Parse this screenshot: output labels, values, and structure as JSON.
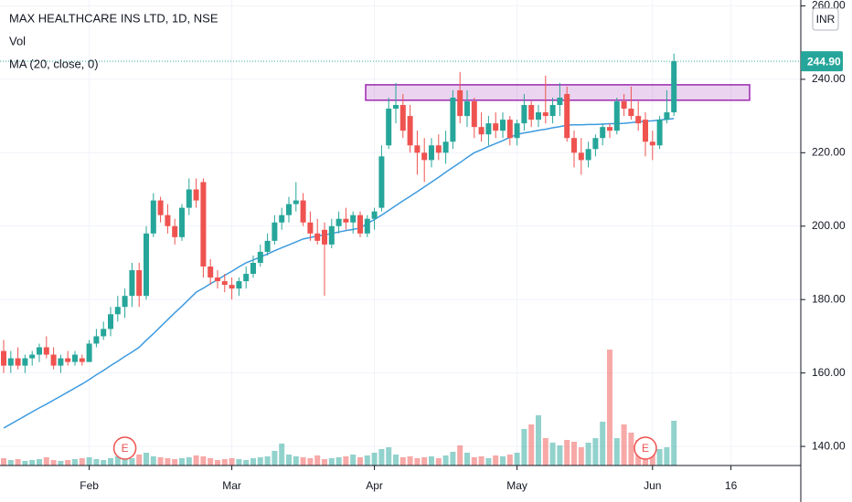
{
  "chart_data": {
    "type": "candlestick",
    "title": "MAX HEALTHCARE INS LTD, 1D, NSE",
    "volume_label": "Vol",
    "ma_label": "MA (20, close, 0)",
    "currency": "INR",
    "up_color": "#26a69a",
    "down_color": "#ef5350",
    "ma_color": "#3d9be0",
    "zone_color": "#9c27b0",
    "ylim": [
      134.8,
      261.6
    ],
    "yticks": [
      {
        "value": 140,
        "label": "140.00"
      },
      {
        "value": 160,
        "label": "160.00"
      },
      {
        "value": 180,
        "label": "180.00"
      },
      {
        "value": 200,
        "label": "200.00"
      },
      {
        "value": 220,
        "label": "220.00"
      },
      {
        "value": 240,
        "label": "240.00"
      },
      {
        "value": 260,
        "label": "260.00"
      }
    ],
    "grid": true,
    "last_price": {
      "value": 244.9,
      "label": "244.90"
    },
    "zone": {
      "top": 238.5,
      "bottom": 234.3
    },
    "events": [
      {
        "label": "E",
        "index": 17
      },
      {
        "label": "E",
        "index": 90
      }
    ],
    "categories": [
      null,
      null,
      null,
      null,
      null,
      null,
      null,
      null,
      null,
      null,
      null,
      null,
      "Feb",
      null,
      null,
      null,
      null,
      null,
      null,
      null,
      null,
      null,
      null,
      null,
      null,
      null,
      null,
      null,
      null,
      null,
      null,
      null,
      "Mar",
      null,
      null,
      null,
      null,
      null,
      null,
      null,
      null,
      null,
      null,
      null,
      null,
      null,
      null,
      null,
      null,
      null,
      null,
      null,
      "Apr",
      null,
      null,
      null,
      null,
      null,
      null,
      null,
      null,
      null,
      null,
      null,
      null,
      null,
      null,
      null,
      null,
      null,
      null,
      null,
      "May",
      null,
      null,
      null,
      null,
      null,
      null,
      null,
      null,
      null,
      null,
      null,
      null,
      null,
      null,
      null,
      null,
      null,
      null,
      "Jun",
      null,
      null,
      null,
      null,
      null,
      null,
      null,
      null,
      null,
      null,
      "16"
    ],
    "ohlc": [
      [
        166,
        169,
        160,
        162
      ],
      [
        162,
        166,
        160,
        164
      ],
      [
        164,
        167,
        161,
        162
      ],
      [
        162,
        165,
        160,
        164
      ],
      [
        164,
        166,
        162,
        165
      ],
      [
        165,
        168,
        163,
        167
      ],
      [
        167,
        170,
        164,
        165
      ],
      [
        165,
        167,
        161,
        162
      ],
      [
        162,
        165,
        160,
        164
      ],
      [
        164,
        166,
        162,
        163
      ],
      [
        163,
        166,
        162,
        165
      ],
      [
        164,
        165,
        162,
        163
      ],
      [
        163,
        169,
        163,
        168
      ],
      [
        168,
        172,
        167,
        170
      ],
      [
        170,
        174,
        169,
        172
      ],
      [
        172,
        178,
        170,
        176
      ],
      [
        176,
        181,
        174,
        178
      ],
      [
        178,
        183,
        175,
        181
      ],
      [
        181,
        190,
        178,
        188
      ],
      [
        188,
        190,
        178,
        181
      ],
      [
        181,
        200,
        180,
        198
      ],
      [
        198,
        209,
        197,
        207
      ],
      [
        207,
        208,
        201,
        203
      ],
      [
        203,
        206,
        198,
        200
      ],
      [
        200,
        202,
        195,
        197
      ],
      [
        197,
        206,
        196,
        205
      ],
      [
        205,
        213,
        203,
        210
      ],
      [
        210,
        213,
        205,
        207
      ],
      [
        212,
        213,
        186,
        189
      ],
      [
        189,
        191,
        184,
        186
      ],
      [
        186,
        188,
        183,
        185
      ],
      [
        185,
        187,
        182,
        184
      ],
      [
        184,
        186,
        180,
        183
      ],
      [
        183,
        186,
        181,
        185
      ],
      [
        185,
        189,
        183,
        187
      ],
      [
        187,
        192,
        186,
        190
      ],
      [
        190,
        195,
        189,
        193
      ],
      [
        193,
        198,
        192,
        196
      ],
      [
        196,
        203,
        195,
        201
      ],
      [
        201,
        205,
        199,
        203
      ],
      [
        203,
        208,
        201,
        206
      ],
      [
        206,
        212,
        204,
        207
      ],
      [
        207,
        209,
        200,
        201
      ],
      [
        201,
        204,
        196,
        198
      ],
      [
        198,
        202,
        195,
        196
      ],
      [
        199,
        201,
        181,
        195
      ],
      [
        195,
        202,
        194,
        200
      ],
      [
        200,
        204,
        198,
        202
      ],
      [
        202,
        205,
        199,
        201
      ],
      [
        201,
        204,
        198,
        203
      ],
      [
        203,
        204,
        197,
        198
      ],
      [
        198,
        203,
        197,
        202
      ],
      [
        202,
        205,
        199,
        204
      ],
      [
        205,
        222,
        204,
        219
      ],
      [
        222,
        235,
        221,
        232
      ],
      [
        232,
        239,
        228,
        233
      ],
      [
        233,
        236,
        224,
        226
      ],
      [
        230,
        233,
        220,
        222
      ],
      [
        222,
        226,
        214,
        220
      ],
      [
        220,
        224,
        212,
        218
      ],
      [
        218,
        224,
        216,
        222
      ],
      [
        222,
        225,
        218,
        220
      ],
      [
        220,
        226,
        217,
        223
      ],
      [
        223,
        237,
        221,
        235
      ],
      [
        237,
        242,
        228,
        230
      ],
      [
        230,
        237,
        227,
        234
      ],
      [
        234,
        235,
        224,
        227
      ],
      [
        227,
        231,
        223,
        225
      ],
      [
        225,
        230,
        222,
        228
      ],
      [
        228,
        231,
        224,
        226
      ],
      [
        226,
        231,
        224,
        229
      ],
      [
        229,
        230,
        222,
        224
      ],
      [
        224,
        229,
        222,
        228
      ],
      [
        228,
        236,
        226,
        233
      ],
      [
        233,
        234,
        227,
        229
      ],
      [
        229,
        233,
        227,
        231
      ],
      [
        231,
        241,
        228,
        230
      ],
      [
        230,
        235,
        228,
        233
      ],
      [
        233,
        239,
        230,
        235
      ],
      [
        236,
        238,
        223,
        224
      ],
      [
        224,
        226,
        216,
        220
      ],
      [
        220,
        224,
        214,
        218
      ],
      [
        218,
        223,
        216,
        221
      ],
      [
        221,
        225,
        219,
        224
      ],
      [
        224,
        228,
        222,
        227
      ],
      [
        227,
        228,
        224,
        226
      ],
      [
        226,
        235,
        225,
        234
      ],
      [
        234,
        236,
        230,
        232
      ],
      [
        232,
        238,
        229,
        230
      ],
      [
        230,
        234,
        226,
        228
      ],
      [
        229,
        231,
        219,
        223
      ],
      [
        223,
        226,
        218,
        222
      ],
      [
        222,
        230,
        221,
        229
      ],
      [
        229,
        237,
        228,
        231
      ],
      [
        231,
        247,
        230,
        244.9
      ],
      null,
      null,
      null,
      null,
      null,
      null,
      null,
      null
    ],
    "volume": [
      8,
      6,
      7,
      5,
      6,
      7,
      9,
      6,
      5,
      6,
      7,
      8,
      9,
      7,
      6,
      8,
      10,
      9,
      8,
      12,
      14,
      10,
      9,
      8,
      7,
      8,
      9,
      11,
      10,
      8,
      6,
      7,
      8,
      7,
      6,
      8,
      9,
      10,
      16,
      24,
      12,
      10,
      9,
      8,
      11,
      7,
      8,
      9,
      10,
      12,
      9,
      11,
      14,
      18,
      20,
      12,
      9,
      10,
      8,
      9,
      10,
      8,
      11,
      15,
      22,
      14,
      9,
      10,
      8,
      11,
      10,
      12,
      14,
      40,
      45,
      55,
      30,
      25,
      22,
      28,
      26,
      20,
      25,
      30,
      48,
      127,
      30,
      45,
      36,
      28,
      30,
      22,
      18,
      20,
      49,
      null,
      null,
      null,
      null,
      null,
      null,
      null,
      null
    ],
    "ma": [
      145,
      146.1,
      147.2,
      148.3,
      149.4,
      150.5,
      151.5,
      152.6,
      153.7,
      154.8,
      155.9,
      157,
      158.2,
      159.5,
      160.7,
      162,
      163.2,
      164.5,
      165.7,
      167,
      168.9,
      170.7,
      172.6,
      174.5,
      176.4,
      178.2,
      180.1,
      182,
      183.1,
      184.3,
      185.4,
      186.6,
      187.7,
      188.9,
      190,
      190.8,
      191.6,
      192.4,
      193.3,
      194.1,
      194.9,
      195.7,
      196.5,
      196.9,
      197.3,
      197.6,
      198,
      198.4,
      198.8,
      199.1,
      199.5,
      200.7,
      201.8,
      203,
      204.3,
      205.6,
      206.9,
      208.1,
      209.4,
      210.7,
      212,
      213.3,
      214.7,
      216,
      217.3,
      218.7,
      220,
      220.8,
      221.7,
      222.5,
      223.3,
      224.2,
      225,
      225.4,
      225.7,
      226.1,
      226.4,
      226.8,
      227.1,
      227.5,
      227.6,
      227.6,
      227.7,
      227.7,
      227.8,
      227.9,
      227.9,
      228,
      228.2,
      228.4,
      228.6,
      228.7,
      228.9,
      229.1,
      229.3,
      null,
      null,
      null,
      null,
      null,
      null,
      null,
      null
    ]
  }
}
